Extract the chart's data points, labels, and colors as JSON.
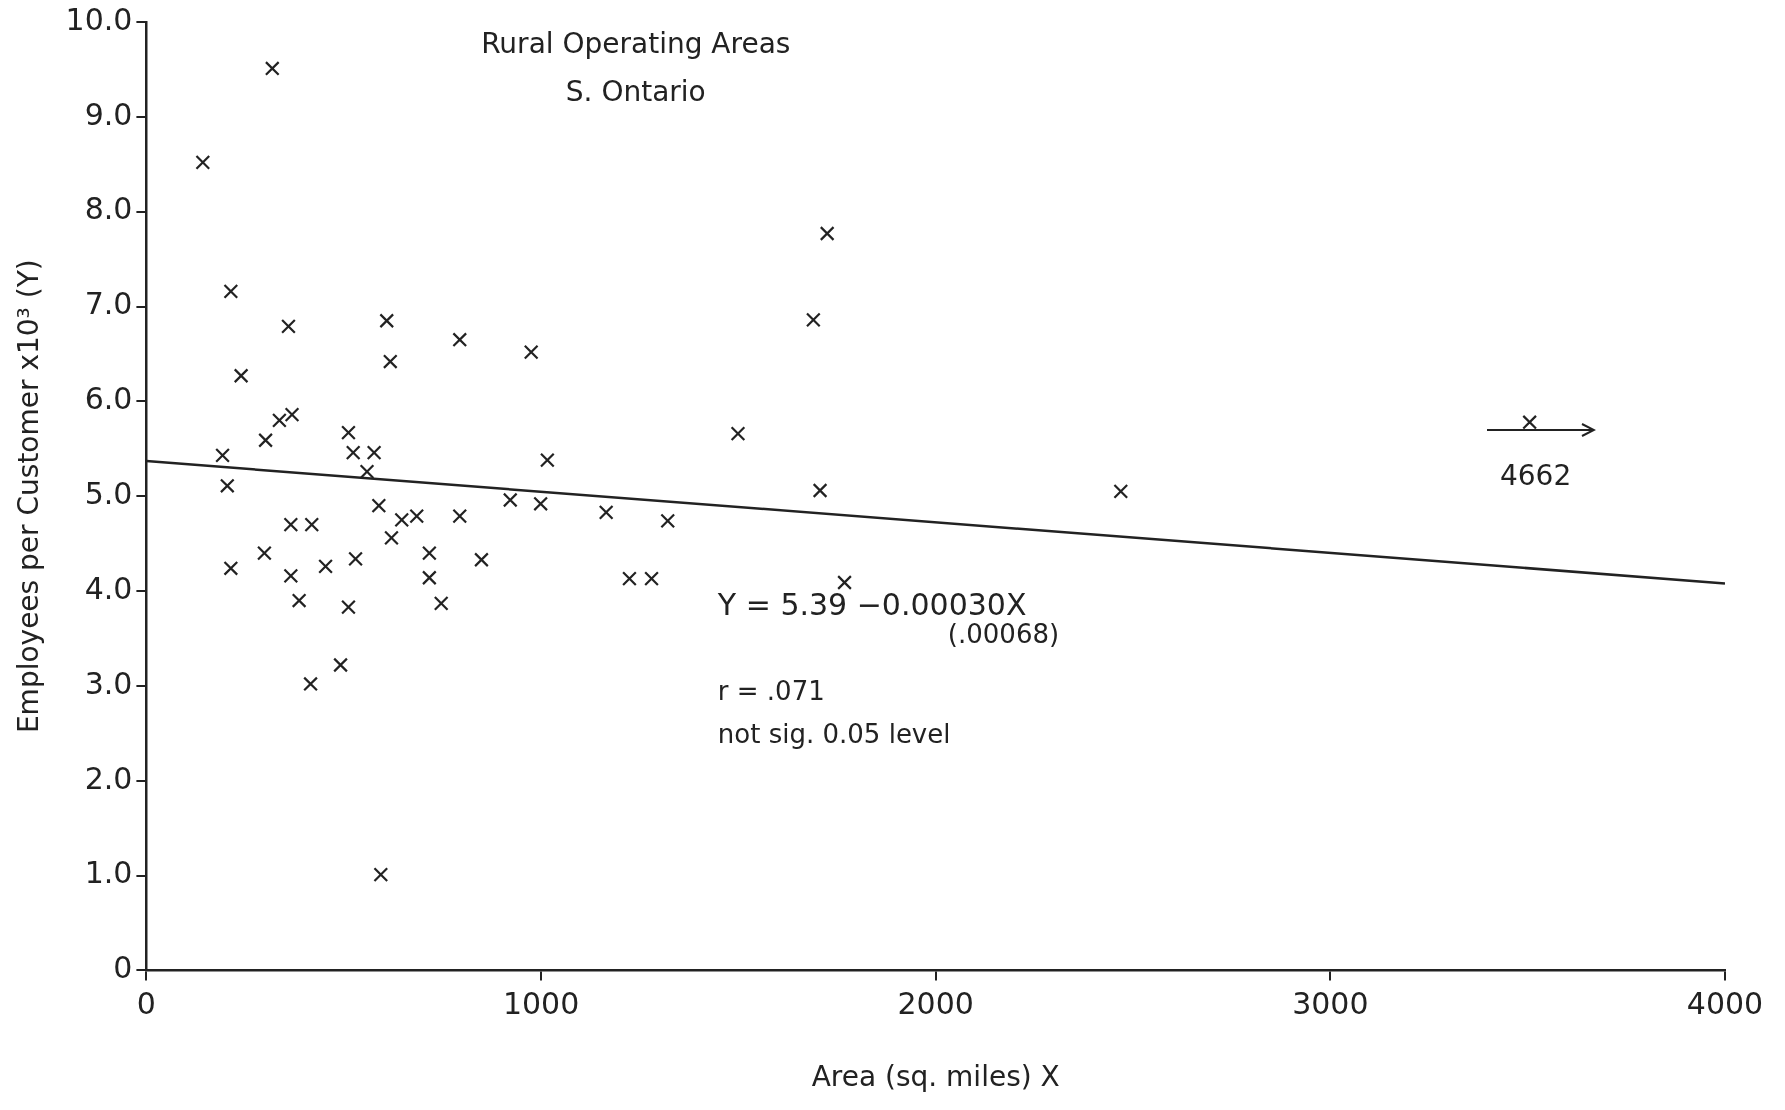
{
  "chart_data": {
    "type": "scatter",
    "title": "Rural Operating Areas",
    "subtitle": "S. Ontario",
    "xlabel": "Area (sq. miles) X",
    "ylabel": "Employees per Customer x10³ (Y)",
    "xlim": [
      0,
      4000
    ],
    "xticks": [
      0,
      1000,
      2000,
      3000,
      4000
    ],
    "ylim": [
      0,
      10
    ],
    "yticks": [
      {
        "value": 0,
        "label": "0"
      },
      {
        "value": 1,
        "label": "1.0"
      },
      {
        "value": 2,
        "label": "2.0"
      },
      {
        "value": 3,
        "label": "3.0"
      },
      {
        "value": 4,
        "label": "4.0"
      },
      {
        "value": 5,
        "label": "5.0"
      },
      {
        "value": 6,
        "label": "6.0"
      },
      {
        "value": 7,
        "label": "7.0"
      },
      {
        "value": 8,
        "label": "8.0"
      },
      {
        "value": 9,
        "label": "9.0"
      },
      {
        "value": 10,
        "label": "10.0"
      }
    ],
    "grid": false,
    "legend": false,
    "marker": "cross",
    "series": [
      {
        "color": "#222222",
        "x": [
          319,
          143,
          214,
          240,
          360,
          609,
          618,
          794,
          975,
          1690,
          1725,
          302,
          337,
          369,
          193,
          205,
          512,
          524,
          577,
          559,
          589,
          647,
          621,
          685,
          794,
          922,
          999,
          1016,
          1165,
          1321,
          1499,
          1707,
          2469,
          3505,
          366,
          419,
          214,
          299,
          366,
          387,
          454,
          530,
          512,
          416,
          492,
          717,
          717,
          747,
          849,
          1224,
          1280,
          1769,
          594
        ],
        "values": [
          9.51,
          8.52,
          7.16,
          6.27,
          6.79,
          6.85,
          6.42,
          6.65,
          6.52,
          6.86,
          7.77,
          5.59,
          5.8,
          5.86,
          5.43,
          5.11,
          5.67,
          5.46,
          5.46,
          5.26,
          4.9,
          4.75,
          4.56,
          4.79,
          4.79,
          4.96,
          4.92,
          5.38,
          4.83,
          4.74,
          5.66,
          5.06,
          5.05,
          5.78,
          4.7,
          4.7,
          4.24,
          4.4,
          4.16,
          3.9,
          4.26,
          4.34,
          3.83,
          3.02,
          3.22,
          4.4,
          4.14,
          3.87,
          4.33,
          4.13,
          4.13,
          4.09,
          1.01
        ]
      },
      {
        "type": "line",
        "color": "#222222",
        "marker": "none",
        "line_style": "solid",
        "x": [
          0,
          4000
        ],
        "values": [
          5.37,
          4.08
        ]
      }
    ],
    "annotations": [
      "Y = 5.39 −0.00030X",
      "(.00068)",
      "r = .071",
      "not sig. 0.05 level",
      "4662"
    ]
  }
}
